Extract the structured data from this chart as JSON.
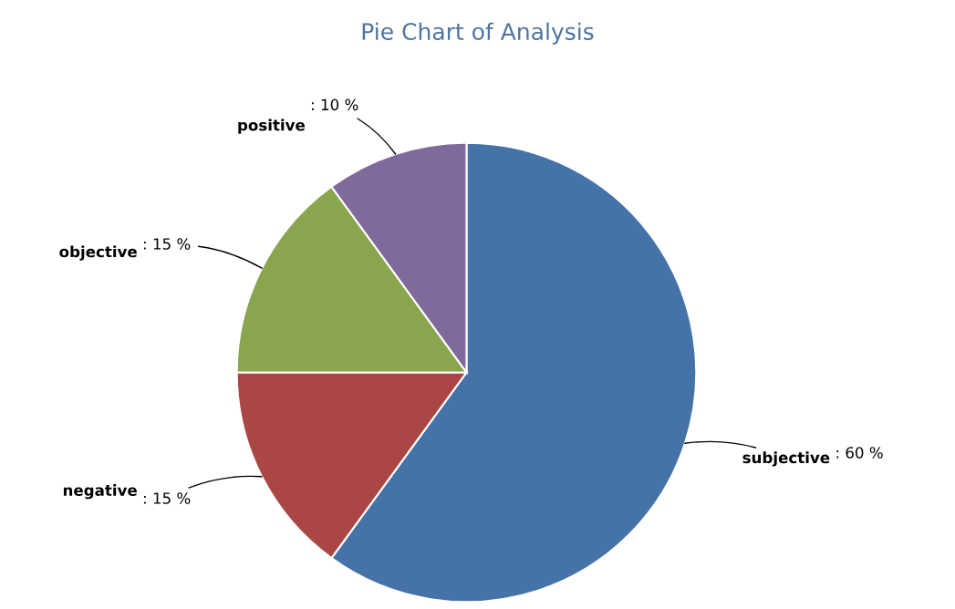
{
  "chart_data": {
    "type": "pie",
    "title": "Pie Chart of Analysis",
    "categories": [
      "subjective",
      "negative",
      "objective",
      "positive"
    ],
    "values": [
      60,
      15,
      15,
      10
    ],
    "value_labels": [
      ": 60 %",
      ": 15 %",
      ": 15 %",
      ": 10 %"
    ],
    "colors": [
      "#4572a7",
      "#aa4643",
      "#89a54e",
      "#80699b"
    ]
  }
}
